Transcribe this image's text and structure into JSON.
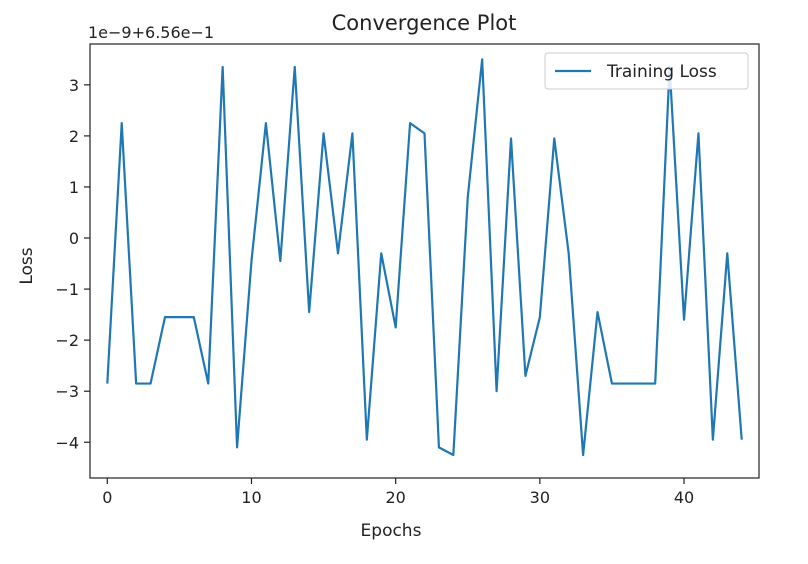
{
  "chart_data": {
    "type": "line",
    "title": "Convergence Plot",
    "xlabel": "Epochs",
    "ylabel": "Loss",
    "y_offset_label": "1e−9+6.56e−1",
    "xlim": [
      -1.2,
      45.2
    ],
    "ylim": [
      -4.7,
      3.8
    ],
    "xticks": [
      0,
      10,
      20,
      30,
      40
    ],
    "yticks": [
      -4,
      -3,
      -2,
      -1,
      0,
      1,
      2,
      3
    ],
    "ytick_labels": [
      "−4",
      "−3",
      "−2",
      "−1",
      "0",
      "1",
      "2",
      "3"
    ],
    "grid": false,
    "legend_position": "upper right",
    "series": [
      {
        "name": "Training Loss",
        "color": "#1f77b4",
        "x": [
          0,
          1,
          2,
          3,
          4,
          5,
          6,
          7,
          8,
          9,
          10,
          11,
          12,
          13,
          14,
          15,
          16,
          17,
          18,
          19,
          20,
          21,
          22,
          23,
          24,
          25,
          26,
          27,
          28,
          29,
          30,
          31,
          32,
          33,
          34,
          35,
          36,
          37,
          38,
          39,
          40,
          41,
          42,
          43,
          44
        ],
        "values": [
          -2.85,
          2.25,
          -2.85,
          -2.85,
          -1.55,
          -1.55,
          -1.55,
          -2.85,
          3.35,
          -4.1,
          -0.45,
          2.25,
          -0.45,
          3.35,
          -1.45,
          2.05,
          -0.3,
          2.05,
          -3.95,
          -0.3,
          -1.75,
          2.25,
          2.05,
          -4.1,
          -4.25,
          0.8,
          3.5,
          -3.0,
          1.95,
          -2.7,
          -1.55,
          1.95,
          -0.3,
          -4.25,
          -1.45,
          -2.85,
          -2.85,
          -2.85,
          -2.85,
          3.35,
          -1.6,
          2.05,
          -3.95,
          -0.3,
          -3.95
        ]
      }
    ]
  }
}
